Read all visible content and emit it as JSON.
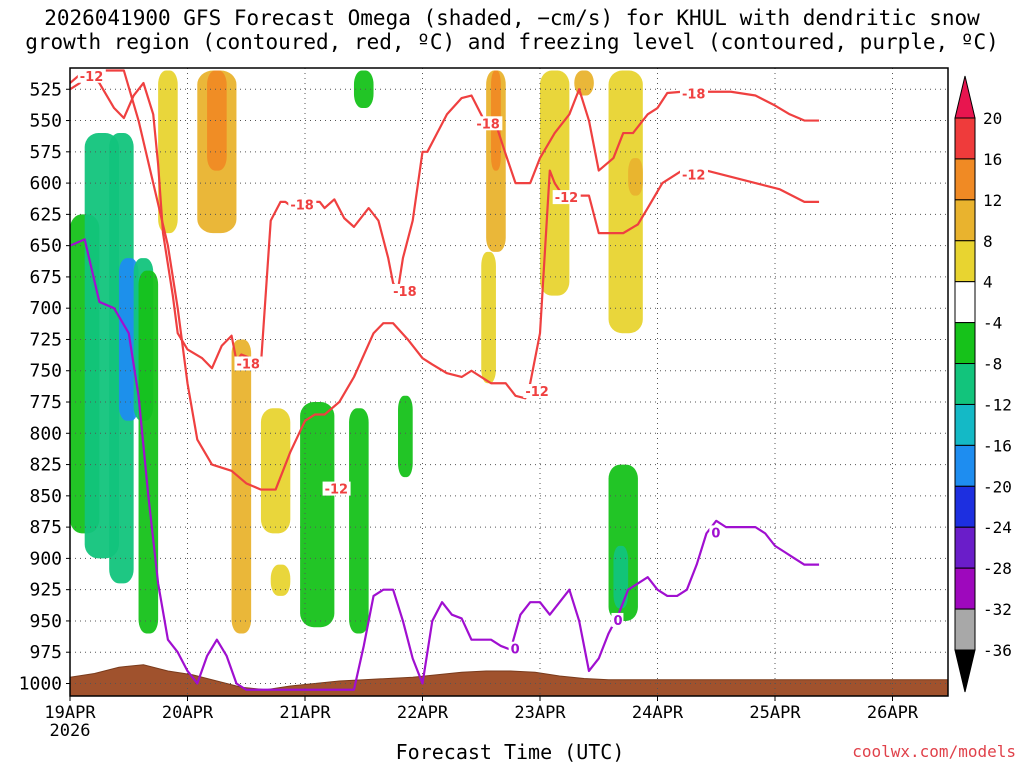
{
  "chart_data": {
    "type": "heatmap",
    "title_line1": "2026041900 GFS Forecast Omega (shaded, −cm/s) for KHUL with dendritic snow",
    "title_line2": "growth region (contoured, red, ºC) and freezing level (contoured, purple, ºC)",
    "xlabel": "Forecast Time (UTC)",
    "ylabel": "",
    "credit": "coolwx.com/models",
    "x_start_label_year": "2026",
    "x_ticks": [
      "19APR",
      "20APR",
      "21APR",
      "22APR",
      "23APR",
      "24APR",
      "25APR",
      "26APR"
    ],
    "x_range_hours": [
      0,
      180
    ],
    "y_ticks": [
      525,
      550,
      575,
      600,
      625,
      650,
      675,
      700,
      725,
      750,
      775,
      800,
      825,
      850,
      875,
      900,
      925,
      950,
      975,
      1000
    ],
    "y_range_hpa": [
      508,
      1010
    ],
    "grid": true,
    "colorbar": {
      "labels": [
        "20",
        "16",
        "12",
        "8",
        "4",
        "-4",
        "-8",
        "-12",
        "-16",
        "-20",
        "-24",
        "-28",
        "-32",
        "-36"
      ],
      "bins": [
        {
          "color": "#e8154f"
        },
        {
          "color": "#ef3b3b"
        },
        {
          "color": "#f08a24"
        },
        {
          "color": "#e9b32e"
        },
        {
          "color": "#e8d430"
        },
        {
          "color": "#ffffff"
        },
        {
          "color": "#16c21a"
        },
        {
          "color": "#12c47c"
        },
        {
          "color": "#14b9c6"
        },
        {
          "color": "#1e8df0"
        },
        {
          "color": "#1d2fe0"
        },
        {
          "color": "#6a1dc9"
        },
        {
          "color": "#9e08bd"
        },
        {
          "color": "#a8a8a8"
        },
        {
          "color": "#000000"
        }
      ]
    },
    "omega_blobs": [
      {
        "x": [
          0,
          6
        ],
        "p": [
          625,
          880
        ],
        "value": -6
      },
      {
        "x": [
          3,
          10
        ],
        "p": [
          560,
          900
        ],
        "value": -8
      },
      {
        "x": [
          8,
          13
        ],
        "p": [
          560,
          920
        ],
        "value": -10
      },
      {
        "x": [
          10,
          14
        ],
        "p": [
          660,
          790
        ],
        "value": -16
      },
      {
        "x": [
          13,
          17
        ],
        "p": [
          660,
          790
        ],
        "value": -10
      },
      {
        "x": [
          14,
          18
        ],
        "p": [
          670,
          960
        ],
        "value": -6
      },
      {
        "x": [
          18,
          22
        ],
        "p": [
          510,
          640
        ],
        "value": 5
      },
      {
        "x": [
          26,
          34
        ],
        "p": [
          510,
          640
        ],
        "value": 8
      },
      {
        "x": [
          28,
          32
        ],
        "p": [
          510,
          590
        ],
        "value": 13
      },
      {
        "x": [
          33,
          37
        ],
        "p": [
          725,
          960
        ],
        "value": 9
      },
      {
        "x": [
          39,
          45
        ],
        "p": [
          780,
          880
        ],
        "value": 5
      },
      {
        "x": [
          41,
          45
        ],
        "p": [
          905,
          930
        ],
        "value": 5
      },
      {
        "x": [
          47,
          54
        ],
        "p": [
          775,
          955
        ],
        "value": -6
      },
      {
        "x": [
          57,
          61
        ],
        "p": [
          780,
          960
        ],
        "value": -6
      },
      {
        "x": [
          58,
          62
        ],
        "p": [
          510,
          540
        ],
        "value": -6
      },
      {
        "x": [
          67,
          70
        ],
        "p": [
          770,
          835
        ],
        "value": -6
      },
      {
        "x": [
          84,
          87
        ],
        "p": [
          655,
          760
        ],
        "value": 5
      },
      {
        "x": [
          85,
          89
        ],
        "p": [
          510,
          655
        ],
        "value": 8
      },
      {
        "x": [
          86,
          88
        ],
        "p": [
          510,
          590
        ],
        "value": 13
      },
      {
        "x": [
          96,
          102
        ],
        "p": [
          510,
          690
        ],
        "value": 6
      },
      {
        "x": [
          103,
          107
        ],
        "p": [
          510,
          530
        ],
        "value": 8
      },
      {
        "x": [
          110,
          117
        ],
        "p": [
          510,
          720
        ],
        "value": 5
      },
      {
        "x": [
          114,
          117
        ],
        "p": [
          580,
          610
        ],
        "value": 10
      },
      {
        "x": [
          110,
          116
        ],
        "p": [
          825,
          950
        ],
        "value": -6
      },
      {
        "x": [
          111,
          114
        ],
        "p": [
          890,
          940
        ],
        "value": -10
      }
    ],
    "series": [
      {
        "name": "-18",
        "color": "#ef4040",
        "label_at": [
          [
            34,
            745
          ],
          [
            45,
            618
          ],
          [
            66,
            687
          ],
          [
            83,
            553
          ],
          [
            125,
            529
          ]
        ],
        "x": [
          0,
          3,
          6,
          9,
          11,
          13,
          15,
          17,
          18,
          19,
          21,
          22,
          24,
          27,
          29,
          31,
          33,
          34,
          35,
          37,
          39,
          41,
          43,
          44,
          45,
          47,
          49,
          51,
          52,
          54,
          56,
          58,
          61,
          63,
          65,
          66,
          67,
          68,
          70,
          72,
          73,
          75,
          77,
          80,
          82,
          85,
          87,
          89,
          91,
          94,
          96,
          99,
          102,
          104,
          106,
          108,
          111,
          113,
          115,
          118,
          120,
          122,
          125,
          129,
          135,
          140,
          144,
          147,
          150,
          153
        ],
        "p": [
          520,
          510,
          520,
          540,
          548,
          530,
          520,
          545,
          585,
          640,
          690,
          720,
          733,
          740,
          748,
          730,
          722,
          742,
          737,
          740,
          745,
          630,
          615,
          615,
          618,
          620,
          615,
          615,
          620,
          613,
          628,
          635,
          620,
          630,
          660,
          680,
          685,
          660,
          630,
          575,
          575,
          560,
          545,
          532,
          530,
          553,
          553,
          577,
          600,
          600,
          580,
          560,
          545,
          525,
          550,
          590,
          580,
          560,
          560,
          545,
          540,
          528,
          527,
          527,
          527,
          530,
          538,
          545,
          550,
          550
        ]
      },
      {
        "name": "-12",
        "color": "#ef4040",
        "label_at": [
          [
            2,
            515
          ],
          [
            52,
            845
          ],
          [
            93,
            767
          ],
          [
            99,
            612
          ],
          [
            125,
            594
          ]
        ],
        "x": [
          0,
          2,
          3,
          11,
          14,
          17,
          20,
          22,
          24,
          26,
          29,
          33,
          36,
          39,
          42,
          45,
          48,
          50,
          52,
          55,
          58,
          62,
          64,
          66,
          69,
          72,
          74,
          77,
          80,
          82,
          86,
          89,
          91,
          93,
          94,
          96,
          98,
          99,
          101,
          104,
          106,
          108,
          110,
          113,
          116,
          118,
          121,
          125,
          130,
          135,
          140,
          145,
          150,
          153
        ],
        "p": [
          525,
          520,
          510,
          510,
          550,
          600,
          650,
          700,
          760,
          805,
          825,
          830,
          840,
          845,
          845,
          815,
          790,
          785,
          785,
          775,
          755,
          720,
          712,
          712,
          725,
          740,
          745,
          752,
          755,
          750,
          760,
          760,
          770,
          772,
          760,
          720,
          590,
          600,
          612,
          610,
          610,
          640,
          640,
          640,
          633,
          620,
          600,
          590,
          590,
          595,
          600,
          605,
          615,
          615
        ]
      },
      {
        "name": "0",
        "color": "#a00fd0",
        "label_at": [
          [
            111,
            950
          ],
          [
            131,
            880
          ],
          [
            90,
            973
          ]
        ],
        "x": [
          0,
          3,
          6,
          9,
          12,
          14,
          16,
          18,
          20,
          22,
          24,
          26,
          28,
          30,
          32,
          34,
          36,
          38,
          40,
          42,
          44,
          46,
          48,
          50,
          52,
          54,
          56,
          58,
          60,
          62,
          64,
          66,
          68,
          70,
          72,
          74,
          76,
          78,
          80,
          82,
          84,
          86,
          88,
          90,
          92,
          94,
          96,
          98,
          100,
          102,
          104,
          106,
          108,
          110,
          112,
          114,
          116,
          118,
          120,
          122,
          124,
          126,
          128,
          130,
          132,
          134,
          136,
          138,
          140,
          142,
          144,
          146,
          148,
          150,
          153
        ],
        "p": [
          650,
          645,
          695,
          700,
          720,
          770,
          850,
          920,
          965,
          975,
          990,
          1000,
          978,
          965,
          978,
          1000,
          1005,
          1005,
          1005,
          1005,
          1005,
          1005,
          1005,
          1005,
          1005,
          1005,
          1005,
          1005,
          970,
          930,
          925,
          925,
          950,
          980,
          1000,
          950,
          935,
          945,
          948,
          965,
          965,
          965,
          970,
          973,
          945,
          935,
          935,
          945,
          935,
          925,
          950,
          990,
          980,
          960,
          945,
          925,
          920,
          915,
          925,
          930,
          930,
          925,
          905,
          880,
          870,
          875,
          875,
          875,
          875,
          880,
          890,
          895,
          900,
          905,
          905
        ]
      }
    ],
    "terrain": {
      "color": "#a0522d",
      "x": [
        0,
        5,
        10,
        15,
        20,
        25,
        30,
        35,
        40,
        45,
        50,
        55,
        60,
        65,
        70,
        75,
        80,
        85,
        90,
        95,
        100,
        105,
        110,
        115,
        120,
        125,
        130,
        135,
        140,
        145,
        150,
        153
      ],
      "p": [
        995,
        992,
        987,
        985,
        990,
        993,
        998,
        1003,
        1005,
        1002,
        1000,
        998,
        997,
        996,
        995,
        993,
        991,
        990,
        990,
        991,
        994,
        996,
        997,
        997,
        997,
        997,
        997,
        997,
        997,
        997,
        997,
        997
      ]
    }
  }
}
